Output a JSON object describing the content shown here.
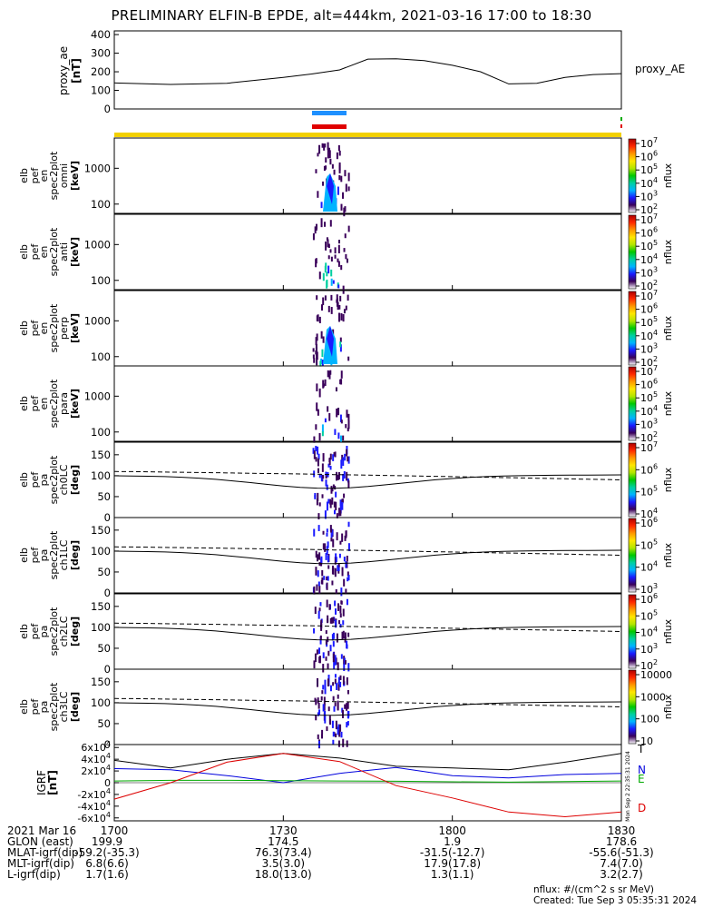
{
  "title": "PRELIMINARY ELFIN-B EPDE, alt=444km, 2021-03-16 17:00 to 18:30",
  "chart_data": [
    {
      "type": "line",
      "panel": "proxy_ae",
      "ylabel": [
        "proxy_ae",
        "[nT]"
      ],
      "right_label": "proxy_AE",
      "yticks": [
        0,
        100,
        200,
        300,
        400
      ],
      "ylim": [
        0,
        420
      ],
      "x_minutes": [
        0,
        10,
        20,
        30,
        35,
        40,
        45,
        50,
        55,
        60,
        65,
        70,
        75,
        80,
        85,
        90
      ],
      "values": [
        140,
        132,
        138,
        170,
        188,
        210,
        268,
        270,
        260,
        235,
        200,
        135,
        138,
        170,
        185,
        190
      ]
    },
    {
      "type": "heatmap",
      "panel": "elb pef en spec2plot omni",
      "ylabel": [
        "elb",
        "pef",
        "en",
        "spec2plot",
        "omni",
        "[keV]"
      ],
      "yscale": "log",
      "yticks": [
        100,
        1000
      ],
      "ylim": [
        55,
        7000
      ],
      "colorbar": {
        "label": "nflux",
        "ticks": [
          "10^2",
          "10^3",
          "10^4",
          "10^5",
          "10^6",
          "10^7"
        ]
      }
    },
    {
      "type": "heatmap",
      "panel": "elb pef en spec2plot anti",
      "ylabel": [
        "elb",
        "pef",
        "en",
        "spec2plot",
        "anti",
        "[keV]"
      ],
      "yscale": "log",
      "yticks": [
        100,
        1000
      ],
      "ylim": [
        55,
        7000
      ],
      "colorbar": {
        "label": "nflux",
        "ticks": [
          "10^2",
          "10^3",
          "10^4",
          "10^5",
          "10^6",
          "10^7"
        ]
      }
    },
    {
      "type": "heatmap",
      "panel": "elb pef en spec2plot perp",
      "ylabel": [
        "elb",
        "pef",
        "en",
        "spec2plot",
        "perp",
        "[keV]"
      ],
      "yscale": "log",
      "yticks": [
        100,
        1000
      ],
      "ylim": [
        55,
        7000
      ],
      "colorbar": {
        "label": "nflux",
        "ticks": [
          "10^2",
          "10^3",
          "10^4",
          "10^5",
          "10^6",
          "10^7"
        ]
      }
    },
    {
      "type": "heatmap",
      "panel": "elb pef en spec2plot para",
      "ylabel": [
        "elb",
        "pef",
        "en",
        "spec2plot",
        "para",
        "[keV]"
      ],
      "yscale": "log",
      "yticks": [
        100,
        1000
      ],
      "ylim": [
        55,
        7000
      ],
      "colorbar": {
        "label": "nflux",
        "ticks": [
          "10^2",
          "10^3",
          "10^4",
          "10^5",
          "10^6",
          "10^7"
        ]
      }
    },
    {
      "type": "heatmap",
      "panel": "elb pef pa spec2plot ch0LC",
      "ylabel": [
        "elb",
        "pef",
        "pa",
        "spec2plot",
        "ch0LC",
        "[deg]"
      ],
      "yticks": [
        0,
        50,
        100,
        150
      ],
      "ylim": [
        0,
        180
      ],
      "colorbar": {
        "label": "nflux",
        "ticks": [
          "10^4",
          "10^5",
          "10^6",
          "10^7"
        ]
      }
    },
    {
      "type": "heatmap",
      "panel": "elb pef pa spec2plot ch1LC",
      "ylabel": [
        "elb",
        "pef",
        "pa",
        "spec2plot",
        "ch1LC",
        "[deg]"
      ],
      "yticks": [
        0,
        50,
        100,
        150
      ],
      "ylim": [
        0,
        180
      ],
      "colorbar": {
        "label": "nflux",
        "ticks": [
          "10^3",
          "10^4",
          "10^5",
          "10^6"
        ]
      }
    },
    {
      "type": "heatmap",
      "panel": "elb pef pa spec2plot ch2LC",
      "ylabel": [
        "elb",
        "pef",
        "pa",
        "spec2plot",
        "ch2LC",
        "[deg]"
      ],
      "yticks": [
        0,
        50,
        100,
        150
      ],
      "ylim": [
        0,
        180
      ],
      "colorbar": {
        "label": "nflux",
        "ticks": [
          "10^2",
          "10^3",
          "10^4",
          "10^5",
          "10^6"
        ]
      }
    },
    {
      "type": "heatmap",
      "panel": "elb pef pa spec2plot ch3LC",
      "ylabel": [
        "elb",
        "pef",
        "pa",
        "spec2plot",
        "ch3LC",
        "[deg]"
      ],
      "yticks": [
        0,
        50,
        100,
        150
      ],
      "ylim": [
        0,
        180
      ],
      "colorbar": {
        "label": "nflux",
        "ticks": [
          "10",
          "100",
          "1000",
          "10000"
        ]
      }
    },
    {
      "type": "line",
      "panel": "IGRF",
      "ylabel": [
        "IGRF",
        "[nT]"
      ],
      "yticks": [
        "-6x10^4",
        "-4x10^4",
        "-2x10^4",
        "0",
        "2x10^4",
        "4x10^4",
        "6x10^4"
      ],
      "ylim": [
        -65000,
        65000
      ],
      "x_minutes": [
        0,
        10,
        20,
        30,
        40,
        50,
        60,
        70,
        80,
        90
      ],
      "series": [
        {
          "name": "T",
          "color": "#000000",
          "values": [
            38000,
            25000,
            40000,
            50000,
            42000,
            28000,
            25000,
            22000,
            35000,
            50000
          ]
        },
        {
          "name": "N",
          "color": "#0000dd",
          "values": [
            24000,
            22000,
            12000,
            0,
            16000,
            26000,
            12000,
            8000,
            14000,
            16000
          ]
        },
        {
          "name": "E",
          "color": "#00aa00",
          "values": [
            3000,
            4000,
            4000,
            3500,
            3000,
            2500,
            1500,
            1000,
            2000,
            3000
          ]
        },
        {
          "name": "D",
          "color": "#dd0000",
          "values": [
            -28000,
            0,
            35000,
            50000,
            36000,
            -5000,
            -26000,
            -50000,
            -58000,
            -50000
          ]
        }
      ]
    }
  ],
  "tracks": {
    "blue_bar_label": "",
    "red_bar_label": ""
  },
  "xaxis": {
    "date_label": "2021 Mar 16",
    "ticks": [
      "1700",
      "1730",
      "1800",
      "1830"
    ]
  },
  "ephemeris": [
    {
      "label": "GLON (east)",
      "values": [
        "199.9",
        "174.5",
        "1.9",
        "178.6"
      ]
    },
    {
      "label": "MLAT-igrf(dip)",
      "values": [
        "-59.2(-35.3)",
        "76.3(73.4)",
        "-31.5(-12.7)",
        "-55.6(-51.3)"
      ]
    },
    {
      "label": "MLT-igrf(dip)",
      "values": [
        "6.8(6.6)",
        "3.5(3.0)",
        "17.9(17.8)",
        "7.4(7.0)"
      ]
    },
    {
      "label": "L-igrf(dip)",
      "values": [
        "1.7(1.6)",
        "18.0(13.0)",
        "1.3(1.1)",
        "3.2(2.7)"
      ]
    }
  ],
  "units_note": "nflux: #/(cm^2 s sr MeV)",
  "created": "Created: Tue Sep  3 05:35:31 2024",
  "side_stamp": "Mon Sep  2 22:35:31 2024",
  "colors": {
    "track_blue": "#1e90ff",
    "track_red": "#e00000",
    "track_yellow": "#f2d000"
  }
}
